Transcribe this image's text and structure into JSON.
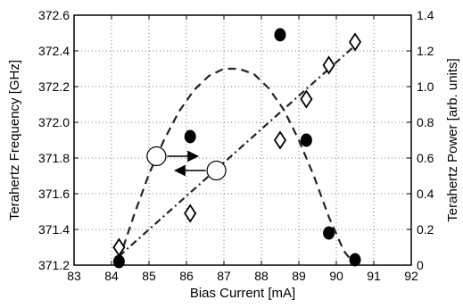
{
  "chart_data": {
    "type": "scatter",
    "title": "",
    "xlabel": "Bias Current [mA]",
    "ylabel": "Terahertz Frequency [GHz]",
    "y2label": "Terahertz Power [arb. units]",
    "xlim": [
      83,
      92
    ],
    "ylim": [
      371.2,
      372.6
    ],
    "y2lim": [
      0,
      1.4
    ],
    "grid": true,
    "x_ticks": [
      "83",
      "84",
      "85",
      "86",
      "87",
      "88",
      "89",
      "90",
      "91",
      "92"
    ],
    "y_ticks": [
      "371.2",
      "371.4",
      "371.6",
      "371.8",
      "372.0",
      "372.2",
      "372.4",
      "372.6"
    ],
    "y2_ticks": [
      "0",
      "0.2",
      "0.4",
      "0.6",
      "0.8",
      "1.0",
      "1.2",
      "1.4"
    ],
    "series": [
      {
        "marker": "filled-circle",
        "axis": "right",
        "x": [
          84.2,
          86.1,
          88.5,
          89.2,
          89.8,
          90.5
        ],
        "y": [
          0.02,
          0.72,
          1.29,
          0.7,
          0.18,
          0.03
        ]
      },
      {
        "marker": "open-diamond",
        "axis": "left",
        "x": [
          84.2,
          86.1,
          88.5,
          89.2,
          89.8,
          90.5
        ],
        "y": [
          371.3,
          371.49,
          371.9,
          372.13,
          372.32,
          372.45
        ]
      },
      {
        "style": "dashed-fit",
        "axis": "right",
        "x": [
          84.2,
          84.6,
          85.0,
          85.4,
          85.8,
          86.2,
          86.6,
          87.0,
          87.4,
          87.8,
          88.2,
          88.6,
          89.0,
          89.4,
          89.8,
          90.2,
          90.5
        ],
        "y": [
          0.03,
          0.28,
          0.51,
          0.7,
          0.86,
          0.98,
          1.06,
          1.1,
          1.1,
          1.07,
          0.99,
          0.87,
          0.7,
          0.5,
          0.27,
          0.08,
          0.0
        ]
      },
      {
        "style": "dash-dot-fit",
        "axis": "left",
        "x": [
          84.2,
          90.5
        ],
        "y": [
          371.25,
          372.43
        ]
      }
    ],
    "annotations": [
      {
        "shape": "circle",
        "axis": "left",
        "x": 85.2,
        "y": 371.81,
        "arrow": "right"
      },
      {
        "shape": "circle",
        "axis": "left",
        "x": 86.8,
        "y": 371.73,
        "arrow": "left"
      }
    ]
  }
}
